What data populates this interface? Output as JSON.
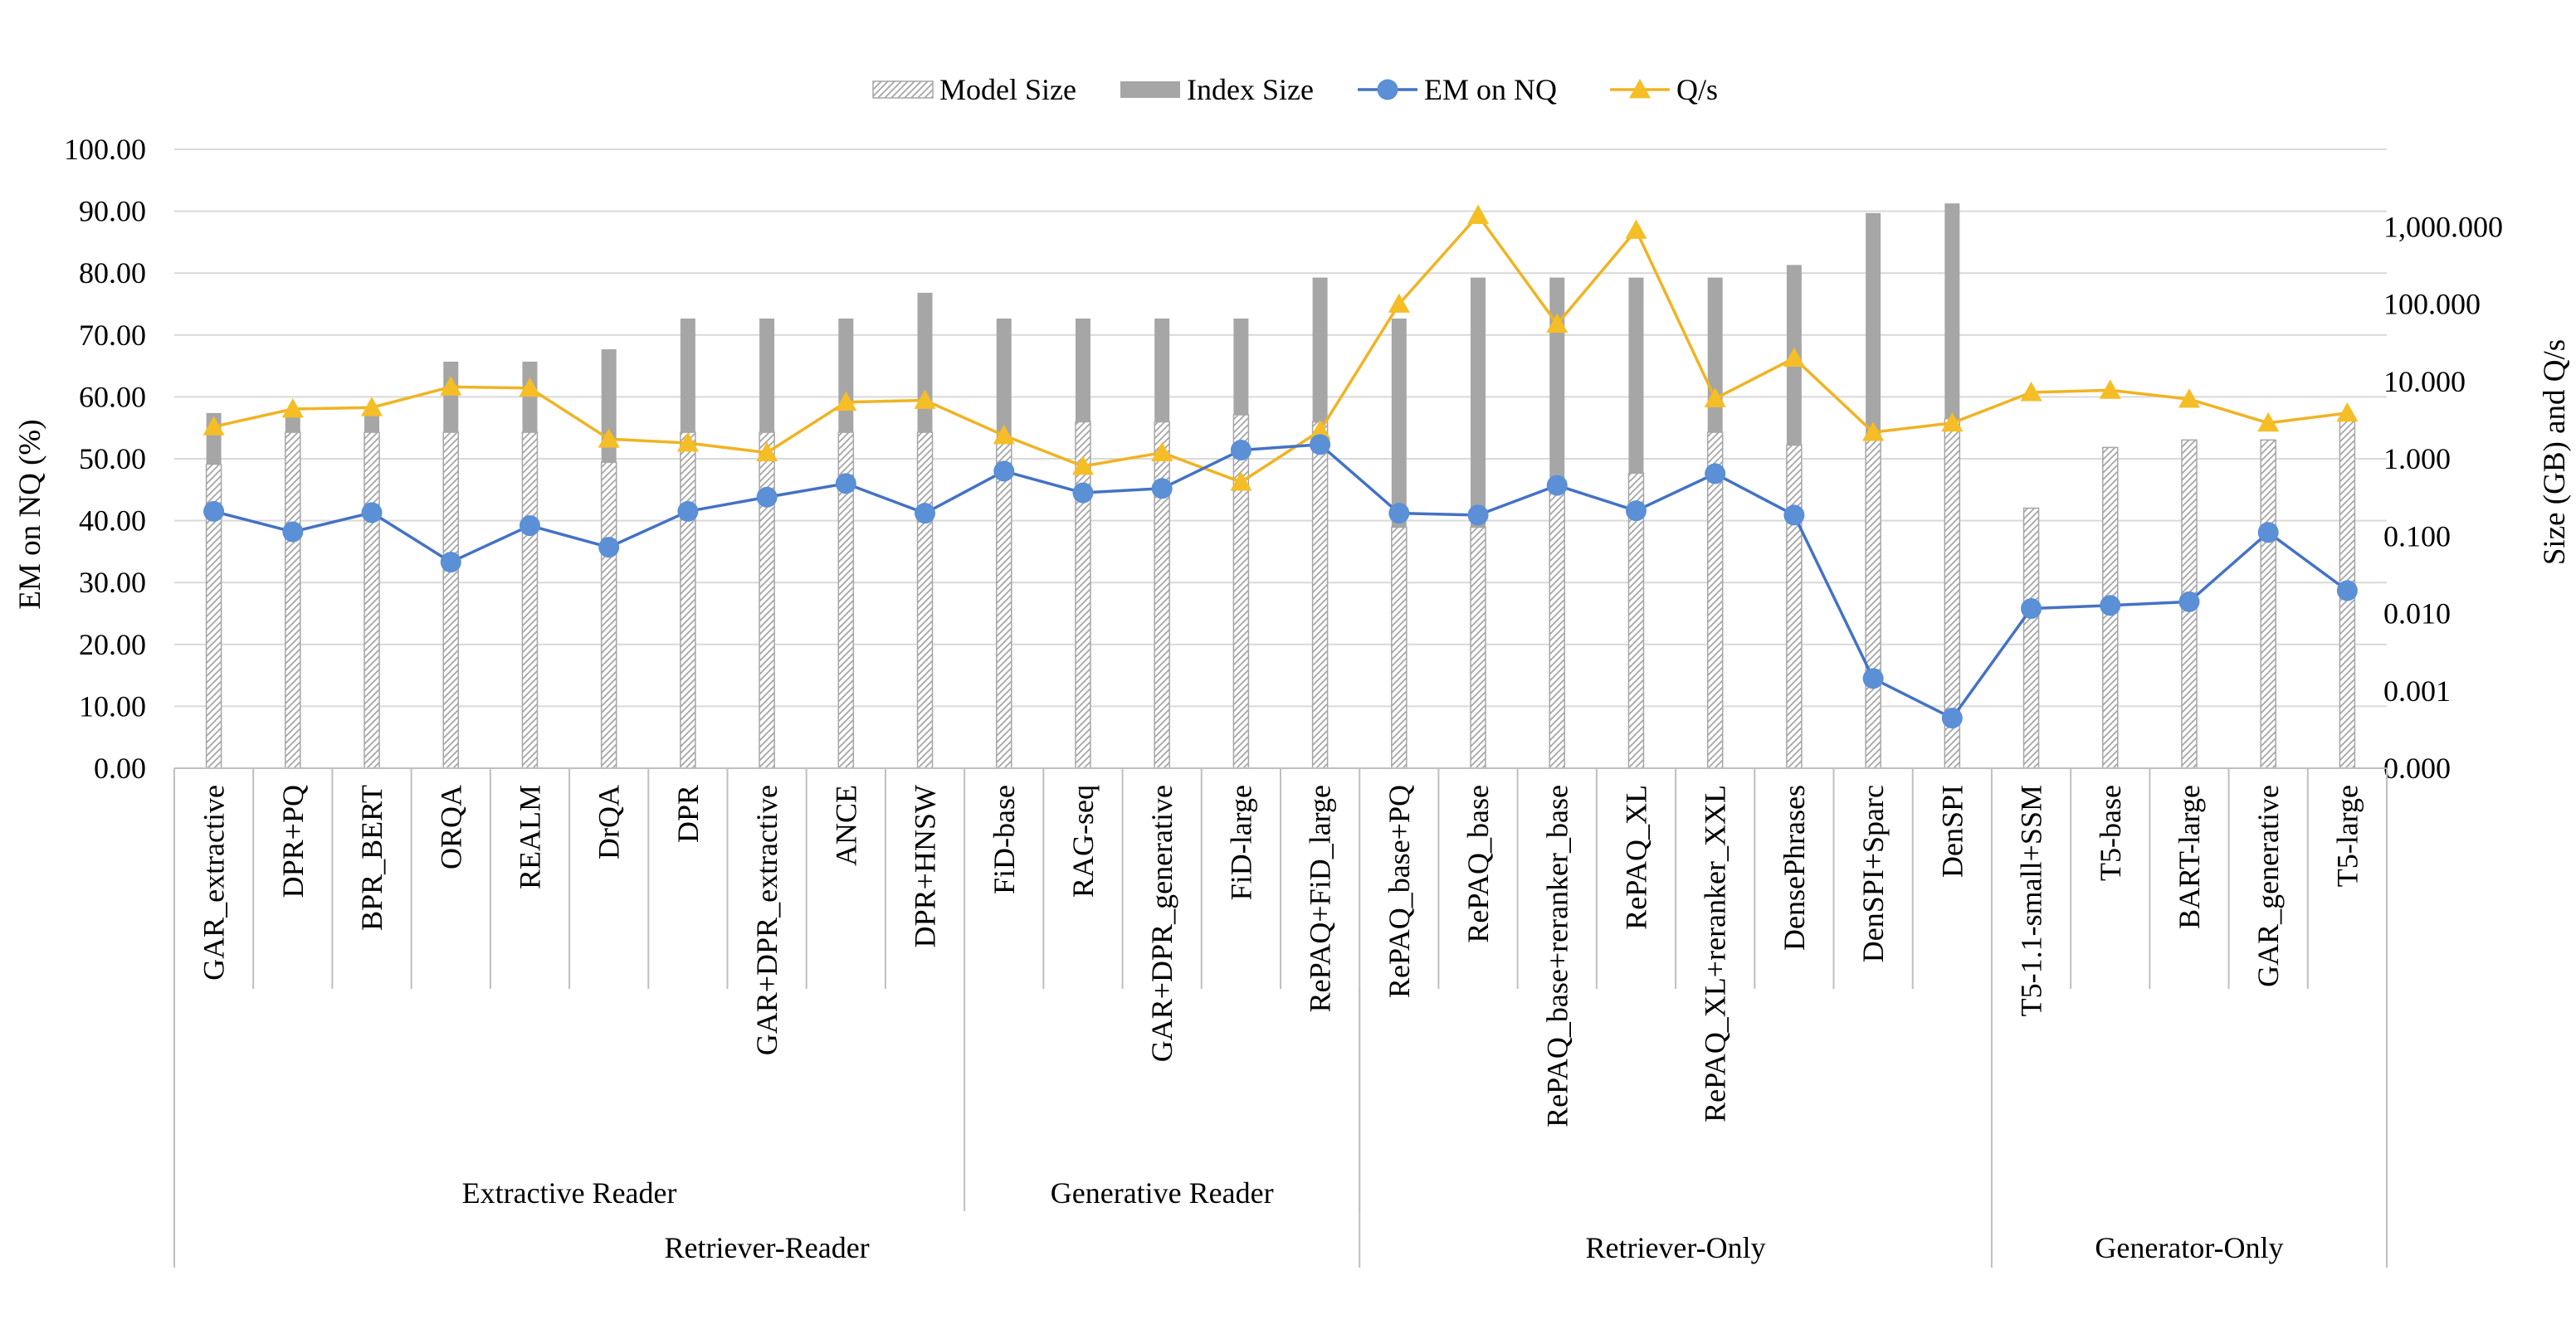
{
  "chart_data": {
    "type": "bar",
    "categories": [
      "GAR_extractive",
      "DPR+PQ",
      "BPR_BERT",
      "ORQA",
      "REALM",
      "DrQA",
      "DPR",
      "GAR+DPR_extractive",
      "ANCE",
      "DPR+HNSW",
      "FiD-base",
      "RAG-seq",
      "GAR+DPR_generative",
      "FiD-large",
      "RePAQ+FiD_large",
      "RePAQ_base+PQ",
      "RePAQ_base",
      "RePAQ_base+reranker_base",
      "RePAQ_XL",
      "RePAQ_XL+reranker_XXL",
      "DensePhrases",
      "DenSPI+Sparc",
      "DenSPI",
      "T5-1.1-small+SSM",
      "T5-base",
      "BART-large",
      "GAR_generative",
      "T5-large"
    ],
    "groups_level1": [
      {
        "label": "Extractive Reader",
        "start": 0,
        "end": 9
      },
      {
        "label": "Generative Reader",
        "start": 10,
        "end": 14
      }
    ],
    "groups_level2": [
      {
        "label": "Retriever-Reader",
        "start": 0,
        "end": 14
      },
      {
        "label": "Retriever-Only",
        "start": 15,
        "end": 22
      },
      {
        "label": "Generator-Only",
        "start": 23,
        "end": 27
      }
    ],
    "left_axis": {
      "label": "EM on NQ (%)",
      "min": 0,
      "max": 100,
      "step": 10,
      "ticks": [
        "0.00",
        "10.00",
        "20.00",
        "30.00",
        "40.00",
        "50.00",
        "60.00",
        "70.00",
        "80.00",
        "90.00",
        "100.00"
      ]
    },
    "right_axis": {
      "label": "Size (GB) and Q/s",
      "scale": "log",
      "min": 0.0001,
      "max": 10000,
      "ticks": [
        {
          "value": 0.0001,
          "label": "0.000"
        },
        {
          "value": 0.001,
          "label": "0.001"
        },
        {
          "value": 0.01,
          "label": "0.010"
        },
        {
          "value": 0.1,
          "label": "0.100"
        },
        {
          "value": 1,
          "label": "1.000"
        },
        {
          "value": 10,
          "label": "10.000"
        },
        {
          "value": 100,
          "label": "100.000"
        },
        {
          "value": 1000,
          "label": "1,000.000"
        }
      ]
    },
    "legend": {
      "placement": "top",
      "entries": [
        {
          "name": "Model Size",
          "style": "hatched-bar"
        },
        {
          "name": "Index Size",
          "style": "solid-bar"
        },
        {
          "name": "EM on NQ",
          "style": "line-circle"
        },
        {
          "name": "Q/s",
          "style": "line-triangle"
        }
      ]
    },
    "colors": {
      "model_bar_stroke": "#a6a6a6",
      "index_bar": "#a6a6a6",
      "em_line": "#4472c4",
      "em_marker": "#5b8fd6",
      "qs_line": "#f0b323",
      "qs_marker": "#f5be27",
      "gridline": "#d9d9d9",
      "axis": "#bfbfbf"
    },
    "series": [
      {
        "name": "Index Size",
        "axis": "right",
        "values": [
          3.9,
          3.9,
          3.9,
          18,
          18,
          26,
          65,
          65,
          65,
          140,
          65,
          65,
          65,
          65,
          220,
          65,
          220,
          220,
          220,
          220,
          320,
          1500,
          2000,
          null,
          null,
          null,
          null,
          null
        ]
      },
      {
        "name": "Model Size",
        "axis": "right",
        "values": [
          0.85,
          2.2,
          2.2,
          2.2,
          2.2,
          0.9,
          2.2,
          2.2,
          2.2,
          2.2,
          1.8,
          3.0,
          3.0,
          3.7,
          3.0,
          0.13,
          0.13,
          0.4,
          0.65,
          2.2,
          1.5,
          2.0,
          3.3,
          0.23,
          1.4,
          1.75,
          1.75,
          3.3
        ]
      },
      {
        "name": "EM on NQ",
        "axis": "left",
        "values": [
          41.5,
          38.2,
          41.3,
          33.3,
          39.2,
          35.7,
          41.5,
          43.8,
          46.0,
          41.2,
          48.0,
          44.5,
          45.2,
          51.4,
          52.3,
          41.2,
          40.9,
          45.7,
          41.6,
          47.6,
          40.9,
          14.5,
          8.1,
          25.8,
          26.3,
          26.9,
          38.1,
          28.7
        ]
      },
      {
        "name": "Q/s",
        "axis": "right",
        "values": [
          2.6,
          4.4,
          4.6,
          8.5,
          8.2,
          1.8,
          1.6,
          1.2,
          5.4,
          5.7,
          2.0,
          0.8,
          1.2,
          0.5,
          2.3,
          100,
          1400,
          55,
          900,
          6,
          20,
          2.2,
          2.9,
          7.2,
          7.7,
          5.9,
          2.9,
          3.9
        ]
      }
    ]
  }
}
